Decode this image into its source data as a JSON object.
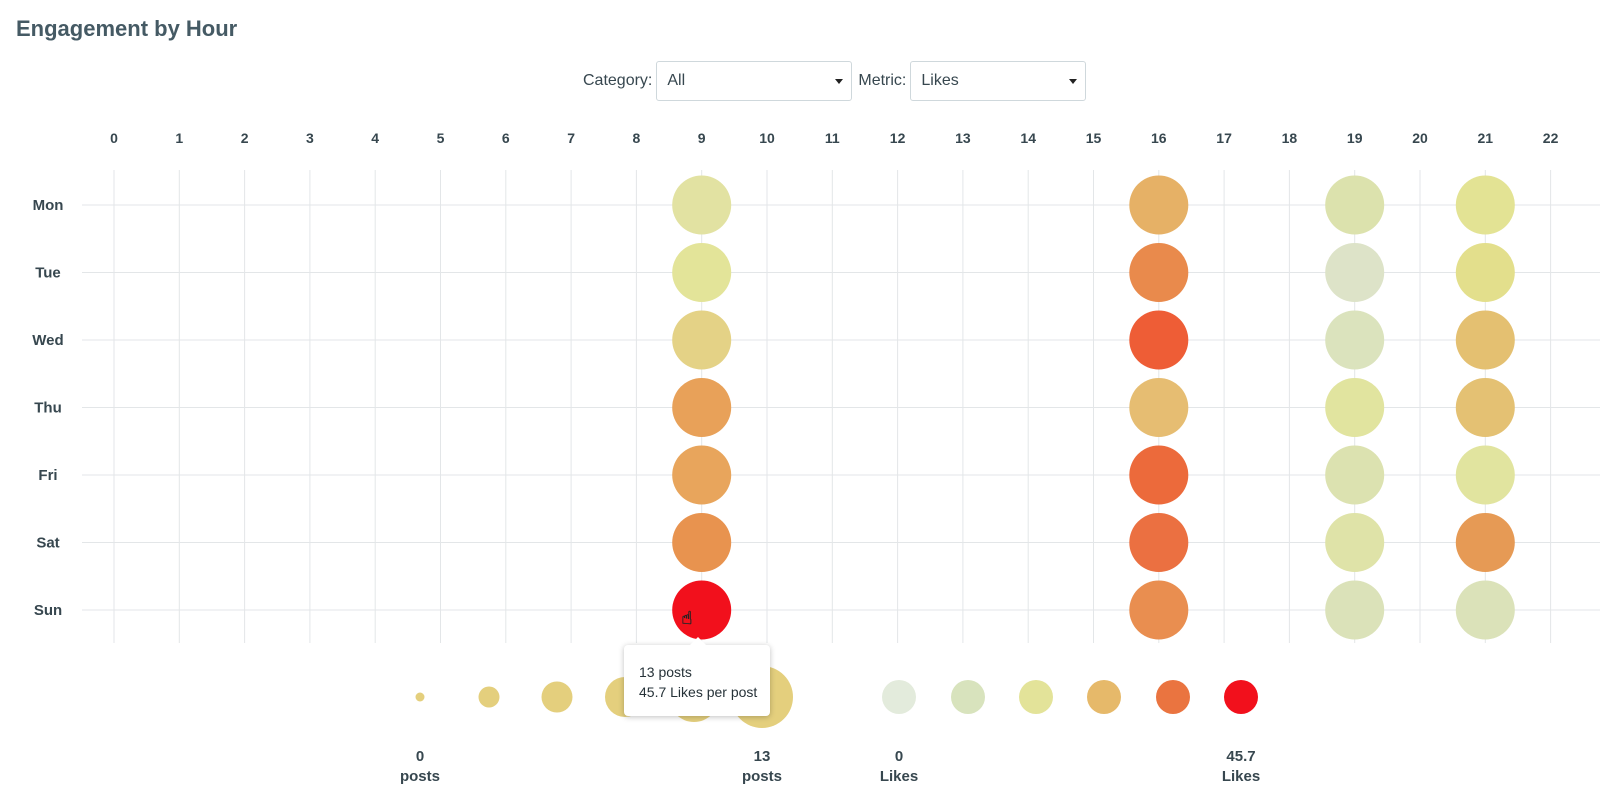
{
  "title": "Engagement by Hour",
  "filters": {
    "category_label": "Category:",
    "category_value": "All",
    "metric_label": "Metric:",
    "metric_value": "Likes"
  },
  "tooltip": {
    "line1": "13 posts",
    "line2": "45.7 Likes per post"
  },
  "chart_data": {
    "type": "scatter",
    "x_ticks": [
      "0",
      "1",
      "2",
      "3",
      "4",
      "5",
      "6",
      "7",
      "8",
      "9",
      "10",
      "11",
      "12",
      "13",
      "14",
      "15",
      "16",
      "17",
      "18",
      "19",
      "20",
      "21",
      "22"
    ],
    "y_categories": [
      "Mon",
      "Tue",
      "Wed",
      "Thu",
      "Fri",
      "Sat",
      "Sun"
    ],
    "grid": true,
    "points": [
      {
        "hour": 9,
        "day": "Mon",
        "color": "#e2e2a2"
      },
      {
        "hour": 9,
        "day": "Tue",
        "color": "#e3e499"
      },
      {
        "hour": 9,
        "day": "Wed",
        "color": "#e4d286"
      },
      {
        "hour": 9,
        "day": "Thu",
        "color": "#e8a159"
      },
      {
        "hour": 9,
        "day": "Fri",
        "color": "#e8a55c"
      },
      {
        "hour": 9,
        "day": "Sat",
        "color": "#e8934f"
      },
      {
        "hour": 9,
        "day": "Sun",
        "color": "#f2101c"
      },
      {
        "hour": 16,
        "day": "Mon",
        "color": "#e6b166"
      },
      {
        "hour": 16,
        "day": "Tue",
        "color": "#e98a4c"
      },
      {
        "hour": 16,
        "day": "Wed",
        "color": "#ee5d36"
      },
      {
        "hour": 16,
        "day": "Thu",
        "color": "#e6bd72"
      },
      {
        "hour": 16,
        "day": "Fri",
        "color": "#ec6a3b"
      },
      {
        "hour": 16,
        "day": "Sat",
        "color": "#eb7041"
      },
      {
        "hour": 16,
        "day": "Sun",
        "color": "#e98e50"
      },
      {
        "hour": 19,
        "day": "Mon",
        "color": "#dce2ad"
      },
      {
        "hour": 19,
        "day": "Tue",
        "color": "#dde3c8"
      },
      {
        "hour": 19,
        "day": "Wed",
        "color": "#dbe3bd"
      },
      {
        "hour": 19,
        "day": "Thu",
        "color": "#e1e49f"
      },
      {
        "hour": 19,
        "day": "Fri",
        "color": "#dce2b0"
      },
      {
        "hour": 19,
        "day": "Sat",
        "color": "#dfe3a8"
      },
      {
        "hour": 19,
        "day": "Sun",
        "color": "#dbe2b9"
      },
      {
        "hour": 21,
        "day": "Mon",
        "color": "#e3e394"
      },
      {
        "hour": 21,
        "day": "Tue",
        "color": "#e3df8c"
      },
      {
        "hour": 21,
        "day": "Wed",
        "color": "#e4c071"
      },
      {
        "hour": 21,
        "day": "Thu",
        "color": "#e4c173"
      },
      {
        "hour": 21,
        "day": "Fri",
        "color": "#e1e49f"
      },
      {
        "hour": 21,
        "day": "Sat",
        "color": "#e69a55"
      },
      {
        "hour": 21,
        "day": "Sun",
        "color": "#dbe2b9"
      }
    ],
    "size_legend": {
      "min_label": [
        "0",
        "posts"
      ],
      "max_label": [
        "13",
        "posts"
      ],
      "color": "#e4cf7d"
    },
    "color_legend": {
      "min_label": [
        "0",
        "Likes"
      ],
      "max_label": [
        "45.7",
        "Likes"
      ],
      "colors": [
        "#e3ebdc",
        "#d8e3bd",
        "#e3e399",
        "#e6b96a",
        "#ea7440",
        "#f2101c"
      ]
    }
  }
}
